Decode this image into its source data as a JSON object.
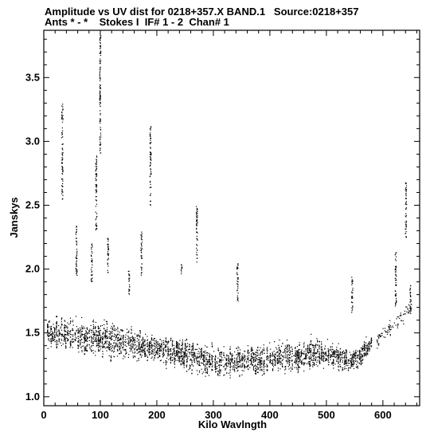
{
  "header": {
    "line1": "Amplitude vs UV dist for 0218+357.X BAND.1   Source:0218+357",
    "line2": "Ants * - *    Stokes I  IF# 1 - 2  Chan# 1"
  },
  "chart_data": {
    "type": "scatter",
    "title": "Amplitude vs UV dist for 0218+357.X BAND.1   Source:0218+357",
    "subtitle": "Ants * - *    Stokes I  IF# 1 - 2  Chan# 1",
    "xlabel": "Kilo Wavlngth",
    "ylabel": "Janskys",
    "xlim": [
      0,
      665
    ],
    "ylim": [
      0.93,
      3.87
    ],
    "xticks": [
      0,
      100,
      200,
      300,
      400,
      500,
      600
    ],
    "yticks": [
      1.0,
      1.5,
      2.0,
      2.5,
      3.0,
      3.5
    ],
    "xtick_labels": [
      "0",
      "100",
      "200",
      "300",
      "400",
      "500",
      "600"
    ],
    "ytick_labels": [
      "1.0",
      "1.5",
      "2.0",
      "2.5",
      "3.0",
      "3.5"
    ],
    "grid": false,
    "legend": "none",
    "marker_color": "#000000",
    "band": {
      "description": "dense band of points along the bottom",
      "x": [
        5,
        50,
        100,
        150,
        200,
        250,
        300,
        350,
        400,
        450,
        500,
        550,
        580
      ],
      "y_center": [
        1.5,
        1.48,
        1.45,
        1.42,
        1.38,
        1.33,
        1.27,
        1.28,
        1.32,
        1.3,
        1.35,
        1.28,
        1.42
      ],
      "y_spread": [
        0.12,
        0.16,
        0.16,
        0.15,
        0.14,
        0.14,
        0.13,
        0.14,
        0.13,
        0.13,
        0.12,
        0.1,
        0.08
      ]
    },
    "streaks": [
      {
        "x": 32,
        "y_min": 2.55,
        "y_max": 3.3
      },
      {
        "x": 57,
        "y_min": 1.95,
        "y_max": 2.35
      },
      {
        "x": 84,
        "y_min": 1.9,
        "y_max": 2.2
      },
      {
        "x": 92,
        "y_min": 2.3,
        "y_max": 2.9
      },
      {
        "x": 99,
        "y_min": 2.9,
        "y_max": 3.85
      },
      {
        "x": 113,
        "y_min": 1.95,
        "y_max": 2.25
      },
      {
        "x": 150,
        "y_min": 1.8,
        "y_max": 2.0
      },
      {
        "x": 172,
        "y_min": 1.95,
        "y_max": 2.3
      },
      {
        "x": 188,
        "y_min": 2.5,
        "y_max": 3.12
      },
      {
        "x": 243,
        "y_min": 1.95,
        "y_max": 2.05
      },
      {
        "x": 270,
        "y_min": 2.05,
        "y_max": 2.5
      },
      {
        "x": 342,
        "y_min": 1.75,
        "y_max": 2.05
      },
      {
        "x": 545,
        "y_min": 1.65,
        "y_max": 1.95
      },
      {
        "x": 622,
        "y_min": 1.7,
        "y_max": 2.15
      },
      {
        "x": 640,
        "y_min": 2.25,
        "y_max": 2.68
      },
      {
        "x": 648,
        "y_min": 1.65,
        "y_max": 1.9
      }
    ]
  }
}
